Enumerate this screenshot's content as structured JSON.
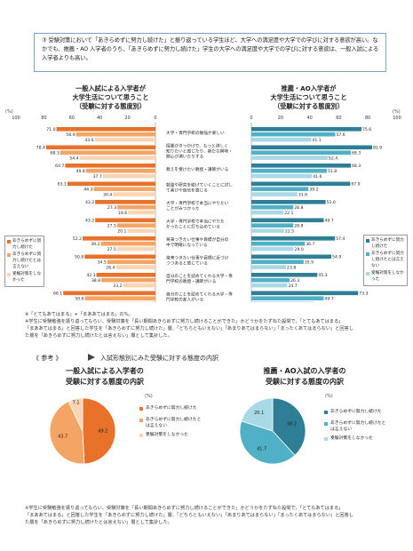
{
  "intro": {
    "number": "③",
    "text": "受験対策において「あきらめずに努力し続けた」と振り返っている学生ほど、大学への満足度や大学での学びに対する意欲が高い。なかでも、推薦・AO 入学者のうち、「あきらめずに努力し続けた」学生の大学への満足度や大学での学びに対する意欲は、一般入試による入学者よりも高い。"
  },
  "left_title": [
    "一般入試による入学者が",
    "大学生活について思うこと",
    "（受験に対する態度別）"
  ],
  "right_title": [
    "推薦・AO入学者が",
    "大学生活について思うこと",
    "（受験に対する態度別）"
  ],
  "pct_label": "(%)",
  "left_ticks": [
    "100",
    "80",
    "60",
    "40",
    "20",
    "0"
  ],
  "right_ticks": [
    "0",
    "20",
    "40",
    "60",
    "80",
    "100"
  ],
  "categories": [
    [
      "大学・専門学校の勉強が楽しい"
    ],
    [
      "授業がきっかけで、もっと詳しく",
      "知りたいと感じたり、新たな興味・",
      "関心が湧いたりする"
    ],
    [
      "教えを受けたい教授・講師がいる"
    ],
    [
      "勉強や研究を続けていくことに対し",
      "て喜びや自信を感じる"
    ],
    [
      "大学・専門学校で本当にやりたい",
      "ことがみつかった"
    ],
    [
      "大学・専門学校で本当にやりた",
      "かったことに打ち込めている"
    ],
    [
      "将来つきたい仕事や目標が自分の",
      "中で明確になっている"
    ],
    [
      "将来つきたい仕事や目標に近づけ",
      "つつあると感じている"
    ],
    [
      "自分のことを認めてくれる大学・専",
      "門学校の教授・講師がいる"
    ],
    [
      "自分のことを認めてくれる大学・専",
      "門学校の友人がいる"
    ]
  ],
  "legend": {
    "items": [
      "あきらめずに努力し続けた",
      "あきらめずに努力し続けたとは言えない",
      "受験対策をしなかった"
    ]
  },
  "colors": {
    "orange_dark": "#e8722a",
    "orange_mid": "#f4a565",
    "orange_light": "#fad5b3",
    "teal_dark": "#2e7f96",
    "teal_mid": "#4fb0c6",
    "teal_light": "#a9d9e4",
    "frame": "#7f9fc8"
  },
  "chart_data": [
    {
      "type": "bar",
      "title": "一般入試による入学者が大学生活について思うこと（受験に対する態度別）",
      "series": [
        {
          "name": "あきらめずに努力し続けた",
          "values": [
            71.0,
            78.4,
            64.7,
            63.1,
            43.2,
            43.2,
            52.2,
            50.8,
            42.3,
            66.1
          ]
        },
        {
          "name": "あきらめずに努力し続けたとは言えない",
          "values": [
            56.9,
            68.3,
            49.8,
            44.3,
            27.3,
            27.5,
            39.2,
            34.5,
            38.8,
            50.6
          ]
        },
        {
          "name": "受験対策をしなかった",
          "values": [
            43.6,
            54.4,
            37.7,
            30.4,
            19.6,
            20.1,
            27.5,
            28.4,
            23.2,
            32.8
          ]
        }
      ],
      "xlim": [
        100,
        0
      ]
    },
    {
      "type": "bar",
      "title": "推薦・AO入学者が大学生活について思うこと（受験に対する態度別）",
      "series": [
        {
          "name": "あきらめずに努力し続けた",
          "values": [
            75.6,
            82.9,
            68.3,
            67.9,
            51.0,
            49.7,
            57.4,
            54.9,
            45.3,
            73.3
          ]
        },
        {
          "name": "あきらめずに努力し続けたとは言えない",
          "values": [
            57.6,
            68.3,
            51.8,
            39.2,
            28.8,
            28.8,
            36.7,
            35.9,
            26.3,
            49.7
          ]
        },
        {
          "name": "受験対策をしなかった",
          "values": [
            41.1,
            52.4,
            41.6,
            31.6,
            22.1,
            22.5,
            29.0,
            23.8,
            24.7,
            43.1
          ]
        }
      ],
      "xlim": [
        0,
        100
      ]
    },
    {
      "type": "pie",
      "title": "一般入試による入学者の受験に対する態度の内訳",
      "categories": [
        "あきらめずに努力し続けた",
        "あきらめずに努力し続けたとは言えない",
        "受験対策をしなかった"
      ],
      "values": [
        49.2,
        43.7,
        7.1
      ]
    },
    {
      "type": "pie",
      "title": "推薦・AO入試の入学者の受験に対する態度の内訳",
      "categories": [
        "あきらめずに努力し続けた",
        "あきらめずに努力し続けたとは言えない",
        "受験対策をしなかった"
      ],
      "values": [
        38.2,
        41.7,
        20.1
      ]
    }
  ],
  "note1": [
    "※「とてもあてはまる」+「まああてはまる」の%。",
    "※学生に受験勉強を振り返ってもらい、受験対策を「長い期間あきらめずに努力し続けることができた」かどうかをたずねた設問で、「とてもあてはまる」",
    "「まああてはまる」と回答した学生を「あきらめずに努力し続けた」層、「どちらともいえない」「あまりあてはまらない」「まったくあてはまらない」と回答し",
    "た層を「あきらめずに努力し続けたとは言えない」層として集計した。"
  ],
  "ref_label": "《 参考 》",
  "ref_title": "入試形態別にみた受験に対する態度の内訳",
  "pie_left_title": [
    "一般入試による入学者の",
    "受験に対する態度の内訳"
  ],
  "pie_right_title": [
    "推薦・AO入試の入学者の",
    "受験に対する態度の内訳"
  ],
  "pie_labels": {
    "left": [
      "49.2",
      "43.7",
      "7.1"
    ],
    "right": [
      "38.2",
      "41.7",
      "20.1"
    ]
  },
  "note2": [
    "※学生に受験勉強を振り返ってもらい、受験対策を「長い期間あきらめずに努力し続けることができた」かどうかをたずねた設問で、「とてもあてはまる」",
    "「まああてはまる」と回答した学生を「あきらめずに努力し続けた」層、「どちらともいえない」「あまりあてはまらない」「まったくあてはまらない」と回答し",
    "た層を「あきらめずに努力し続けたとは言えない」層として集計した。"
  ]
}
